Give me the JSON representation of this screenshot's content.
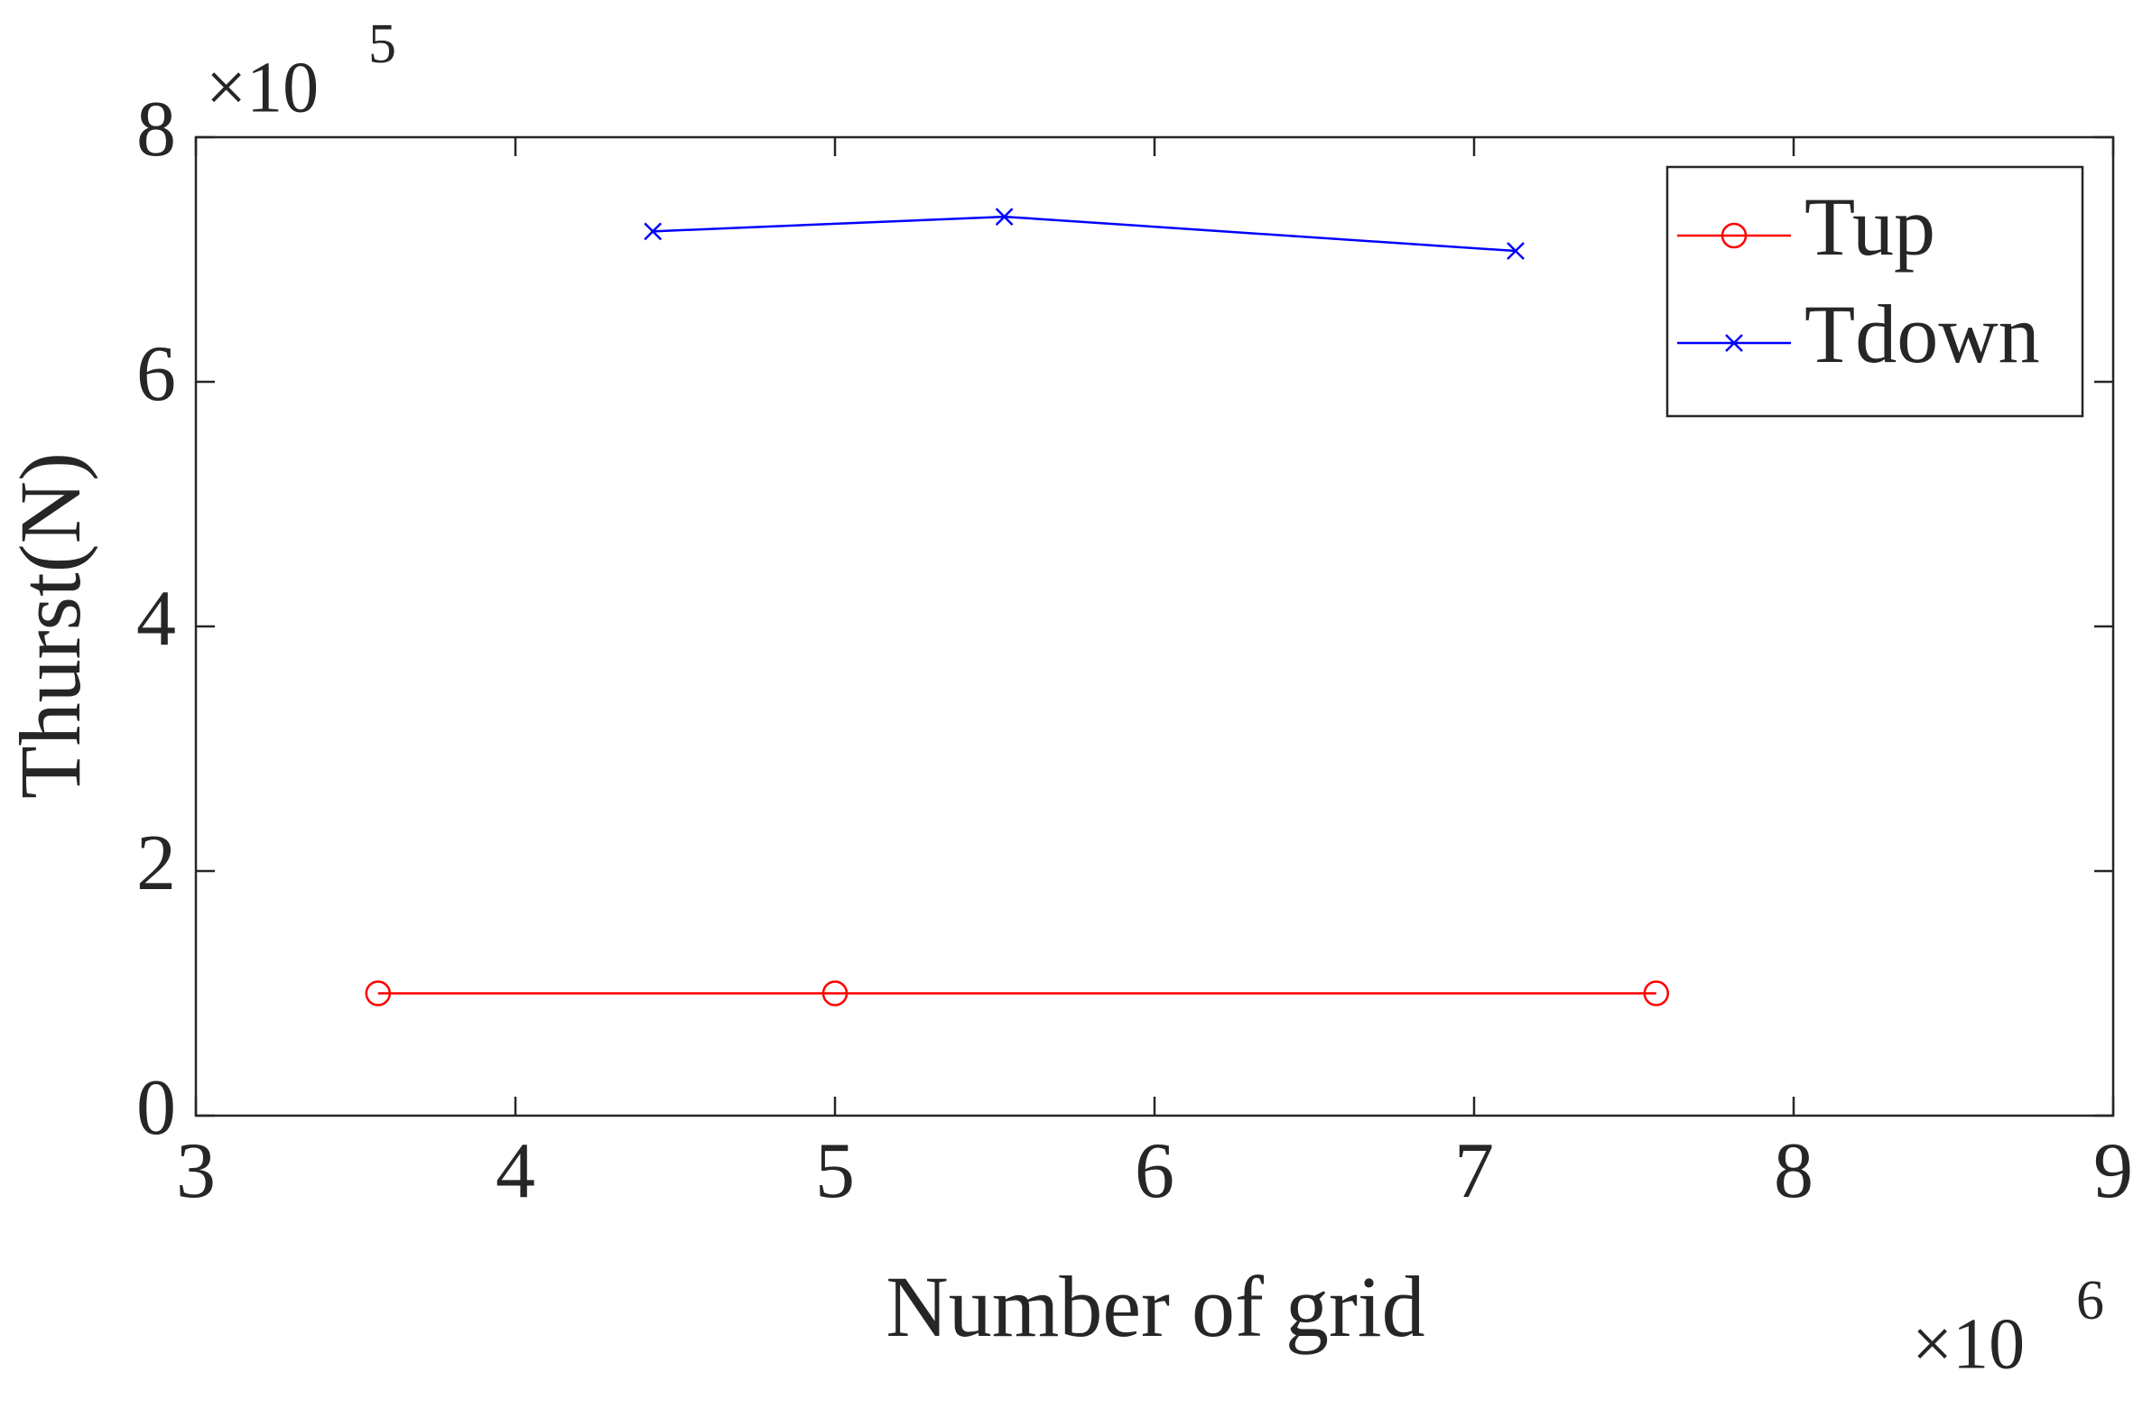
{
  "chart_data": {
    "type": "line",
    "x_label": "Number of grid",
    "y_label": "Thurst(N)",
    "x_multiplier": {
      "base": "×10",
      "exponent": "6"
    },
    "y_multiplier": {
      "base": "×10",
      "exponent": "5"
    },
    "xlim": [
      3,
      9
    ],
    "xticks": [
      3,
      4,
      5,
      6,
      7,
      8,
      9
    ],
    "ylim": [
      0,
      8
    ],
    "yticks": [
      0,
      2,
      4,
      6,
      8
    ],
    "grid": false,
    "legend": "northeast",
    "series": [
      {
        "name": "Tup",
        "color": "#ff0000",
        "marker": "circle",
        "x": [
          3.57,
          5.0,
          7.57
        ],
        "values": [
          1.0,
          1.0,
          1.0
        ]
      },
      {
        "name": "Tdown",
        "color": "#0000ff",
        "marker": "x",
        "x": [
          4.43,
          5.53,
          7.13
        ],
        "values": [
          7.23,
          7.35,
          7.07
        ]
      }
    ]
  }
}
